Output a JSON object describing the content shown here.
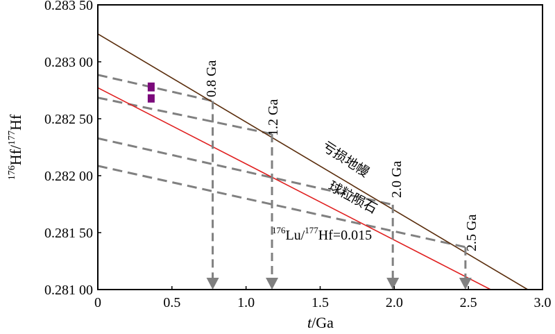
{
  "chart_data": {
    "type": "line",
    "xlabel_var": "t",
    "xlabel_unit": "/Ga",
    "ylabel_sup1": "176",
    "ylabel_main1": "Hf/",
    "ylabel_sup2": "177",
    "ylabel_main2": "Hf",
    "xlim": [
      0,
      3.0
    ],
    "ylim": [
      0.281,
      0.2835
    ],
    "x_ticks": [
      0,
      0.5,
      1.0,
      1.5,
      2.0,
      2.5,
      3.0
    ],
    "x_tick_labels": [
      "0",
      "0.5",
      "1.0",
      "1.5",
      "2.0",
      "2.5",
      "3.0"
    ],
    "y_ticks": [
      0.281,
      0.2815,
      0.282,
      0.2825,
      0.283,
      0.2835
    ],
    "y_tick_labels": [
      "0.281 00",
      "0.281 50",
      "0.282 00",
      "0.282 50",
      "0.283 00",
      "0.283 50"
    ],
    "colors": {
      "depleted_mantle": "#5a2d0c",
      "chondrite": "#e02020",
      "model_age": "#808080",
      "sample": "#7b0a7b",
      "axis": "#000000"
    },
    "series": [
      {
        "name": "亏损地幔",
        "x": [
          0,
          2.9
        ],
        "y": [
          0.283245,
          0.281
        ]
      },
      {
        "name": "球粒陨石",
        "x": [
          0,
          2.65
        ],
        "y": [
          0.282772,
          0.281
        ]
      }
    ],
    "model_age_lines": [
      {
        "label": "0.8 Ga",
        "age": 0.775,
        "x": [
          0,
          0.775
        ],
        "y": [
          0.282885,
          0.282656
        ]
      },
      {
        "label": "1.2 Ga",
        "age": 1.175,
        "x": [
          0,
          1.175
        ],
        "y": [
          0.282685,
          0.282366
        ]
      },
      {
        "label": "2.0 Ga",
        "age": 1.99,
        "x": [
          0,
          1.99
        ],
        "y": [
          0.282328,
          0.281745
        ]
      },
      {
        "label": "2.5 Ga",
        "age": 2.48,
        "x": [
          0,
          2.48
        ],
        "y": [
          0.282086,
          0.281373
        ]
      }
    ],
    "samples": [
      {
        "x": 0.36,
        "y_low": 0.28274,
        "y_high": 0.282818
      },
      {
        "x": 0.36,
        "y_low": 0.282642,
        "y_high": 0.282715
      }
    ],
    "annotations": {
      "depleted_mantle": "亏损地幔",
      "chondrite": "球粒陨石",
      "lu_hf_sup1": "176",
      "lu_hf_main1": "Lu/",
      "lu_hf_sup2": "177",
      "lu_hf_main2": "Hf=0.015"
    }
  }
}
